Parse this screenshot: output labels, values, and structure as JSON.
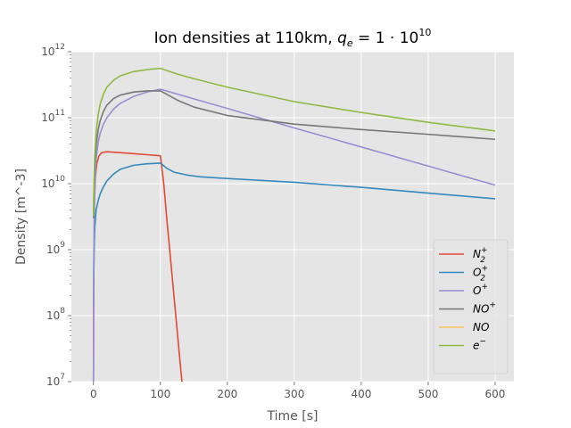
{
  "chart_data": {
    "type": "line",
    "title_parts": {
      "prefix": "Ion densities at 110km, ",
      "var": "q",
      "var_sub": "e",
      "eq": " = 1 · 10",
      "exp": "10"
    },
    "xlabel": "Time [s]",
    "ylabel": "Density [m^-3]",
    "y_scale": "log",
    "xlim": [
      -33,
      628
    ],
    "ylim": [
      10000000.0,
      1000000000000.0
    ],
    "x_ticks": [
      0,
      100,
      200,
      300,
      400,
      500,
      600
    ],
    "y_tick_base": "10",
    "y_tick_exponents": [
      7,
      8,
      9,
      10,
      11,
      12
    ],
    "grid": true,
    "legend_position": "lower-right",
    "series": [
      {
        "name": "N2+",
        "label_base": "N",
        "label_sub": "2",
        "label_sup": "+",
        "color": "#E24A33",
        "points": [
          [
            0,
            10000000.0
          ],
          [
            0.3,
            100000000.0
          ],
          [
            0.7,
            1000000000.0
          ],
          [
            1.5,
            6000000000.0
          ],
          [
            3,
            13000000000.0
          ],
          [
            5,
            20000000000.0
          ],
          [
            8,
            26000000000.0
          ],
          [
            12,
            29500000000.0
          ],
          [
            20,
            30500000000.0
          ],
          [
            40,
            29500000000.0
          ],
          [
            60,
            28500000000.0
          ],
          [
            80,
            27500000000.0
          ],
          [
            100,
            26500000000.0
          ],
          [
            105,
            10000000000.0
          ],
          [
            110,
            2600000000.0
          ],
          [
            115,
            750000000.0
          ],
          [
            120,
            210000000.0
          ],
          [
            125,
            60000000.0
          ],
          [
            130,
            17000000.0
          ],
          [
            135,
            5000000.0
          ]
        ]
      },
      {
        "name": "O2+",
        "label_base": "O",
        "label_sub": "2",
        "label_sup": "+",
        "color": "#348ABD",
        "points": [
          [
            0,
            130000000.0
          ],
          [
            0.5,
            400000000.0
          ],
          [
            1,
            1000000000.0
          ],
          [
            2,
            2200000000.0
          ],
          [
            4,
            4000000000.0
          ],
          [
            7,
            5500000000.0
          ],
          [
            10,
            7000000000.0
          ],
          [
            15,
            9000000000.0
          ],
          [
            20,
            11000000000.0
          ],
          [
            30,
            14000000000.0
          ],
          [
            40,
            16500000000.0
          ],
          [
            60,
            19000000000.0
          ],
          [
            80,
            20000000000.0
          ],
          [
            100,
            20500000000.0
          ],
          [
            110,
            17000000000.0
          ],
          [
            120,
            15000000000.0
          ],
          [
            140,
            13500000000.0
          ],
          [
            160,
            12700000000.0
          ],
          [
            200,
            12000000000.0
          ],
          [
            300,
            10500000000.0
          ],
          [
            400,
            8800000000.0
          ],
          [
            500,
            7200000000.0
          ],
          [
            600,
            5900000000.0
          ]
        ]
      },
      {
        "name": "O+",
        "label_base": "O",
        "label_sup": "+",
        "color": "#988ED5",
        "points": [
          [
            0,
            10000000.0
          ],
          [
            0.3,
            500000000.0
          ],
          [
            1,
            3000000000.0
          ],
          [
            2,
            9000000000.0
          ],
          [
            4,
            24000000000.0
          ],
          [
            7,
            42000000000.0
          ],
          [
            10,
            58000000000.0
          ],
          [
            15,
            80000000000.0
          ],
          [
            20,
            100000000000.0
          ],
          [
            30,
            135000000000.0
          ],
          [
            40,
            165000000000.0
          ],
          [
            60,
            210000000000.0
          ],
          [
            80,
            245000000000.0
          ],
          [
            100,
            270000000000.0
          ],
          [
            150,
            193000000000.0
          ],
          [
            200,
            138000000000.0
          ],
          [
            300,
            70000000000.0
          ],
          [
            400,
            36000000000.0
          ],
          [
            500,
            18500000000.0
          ],
          [
            600,
            9500000000.0
          ]
        ]
      },
      {
        "name": "NO+",
        "label_base": "NO",
        "label_sup": "+",
        "color": "#777777",
        "points": [
          [
            0,
            3000000000.0
          ],
          [
            0.5,
            6000000000.0
          ],
          [
            1,
            10000000000.0
          ],
          [
            2,
            19000000000.0
          ],
          [
            4,
            38000000000.0
          ],
          [
            7,
            65000000000.0
          ],
          [
            10,
            90000000000.0
          ],
          [
            15,
            125000000000.0
          ],
          [
            20,
            155000000000.0
          ],
          [
            30,
            195000000000.0
          ],
          [
            40,
            220000000000.0
          ],
          [
            60,
            245000000000.0
          ],
          [
            80,
            255000000000.0
          ],
          [
            100,
            255000000000.0
          ],
          [
            110,
            225000000000.0
          ],
          [
            125,
            185000000000.0
          ],
          [
            150,
            145000000000.0
          ],
          [
            200,
            108000000000.0
          ],
          [
            300,
            80000000000.0
          ],
          [
            400,
            66000000000.0
          ],
          [
            500,
            56000000000.0
          ],
          [
            600,
            47000000000.0
          ]
        ]
      },
      {
        "name": "NO",
        "label_base": "NO",
        "color": "#FBC15E",
        "points": []
      },
      {
        "name": "e-",
        "label_base": "e",
        "label_sup": "−",
        "color": "#8EBA42",
        "points": [
          [
            0,
            3200000000.0
          ],
          [
            0.5,
            7000000000.0
          ],
          [
            1,
            13000000000.0
          ],
          [
            2,
            27000000000.0
          ],
          [
            4,
            60000000000.0
          ],
          [
            7,
            110000000000.0
          ],
          [
            10,
            160000000000.0
          ],
          [
            15,
            230000000000.0
          ],
          [
            20,
            290000000000.0
          ],
          [
            30,
            370000000000.0
          ],
          [
            40,
            430000000000.0
          ],
          [
            60,
            500000000000.0
          ],
          [
            80,
            535000000000.0
          ],
          [
            100,
            560000000000.0
          ],
          [
            125,
            460000000000.0
          ],
          [
            150,
            390000000000.0
          ],
          [
            200,
            290000000000.0
          ],
          [
            300,
            175000000000.0
          ],
          [
            400,
            120000000000.0
          ],
          [
            500,
            85000000000.0
          ],
          [
            600,
            63000000000.0
          ]
        ]
      }
    ]
  }
}
